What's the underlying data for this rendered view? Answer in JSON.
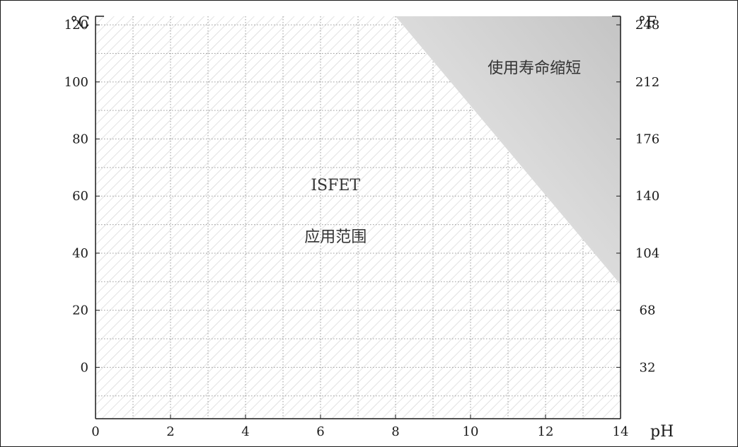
{
  "chart_data": {
    "type": "area",
    "x_axis": {
      "label": "pH",
      "range": [
        0,
        14
      ],
      "ticks": [
        0,
        2,
        4,
        6,
        8,
        10,
        12,
        14
      ],
      "minor_step": 1
    },
    "y_axis_left": {
      "unit": "°C",
      "range": [
        -18,
        123
      ],
      "ticks": [
        0,
        20,
        40,
        60,
        80,
        100,
        120
      ],
      "minor_step": 10
    },
    "y_axis_right": {
      "unit": "°F",
      "ticks": [
        {
          "at_celsius": 120,
          "label": "248"
        },
        {
          "at_celsius": 100,
          "label": "212"
        },
        {
          "at_celsius": 80,
          "label": "176"
        },
        {
          "at_celsius": 60,
          "label": "140"
        },
        {
          "at_celsius": 40,
          "label": "104"
        },
        {
          "at_celsius": 20,
          "label": "68"
        },
        {
          "at_celsius": 0,
          "label": "32"
        }
      ]
    },
    "grid": true,
    "regions": [
      {
        "name": "application-range",
        "label_lines": [
          "ISFET",
          "应用范围"
        ],
        "fill": "hatched",
        "label_anchor": {
          "x": 6.4,
          "y_lines": [
            62,
            44
          ]
        }
      },
      {
        "name": "reduced-lifetime",
        "label_lines": [
          "使用寿命缩短"
        ],
        "fill": "gradient-gray",
        "boundary": [
          [
            8,
            123
          ],
          [
            14,
            123
          ],
          [
            14,
            29
          ]
        ],
        "label_anchor": {
          "x": 11.7,
          "y_lines": [
            103
          ]
        }
      }
    ],
    "colors": {
      "hatch": "#cfcfcf",
      "grid": "#9a9a9a",
      "shade_dark": "#c4c4c4",
      "shade_light": "#f2f2f2",
      "axis": "#1a1a1a"
    }
  }
}
